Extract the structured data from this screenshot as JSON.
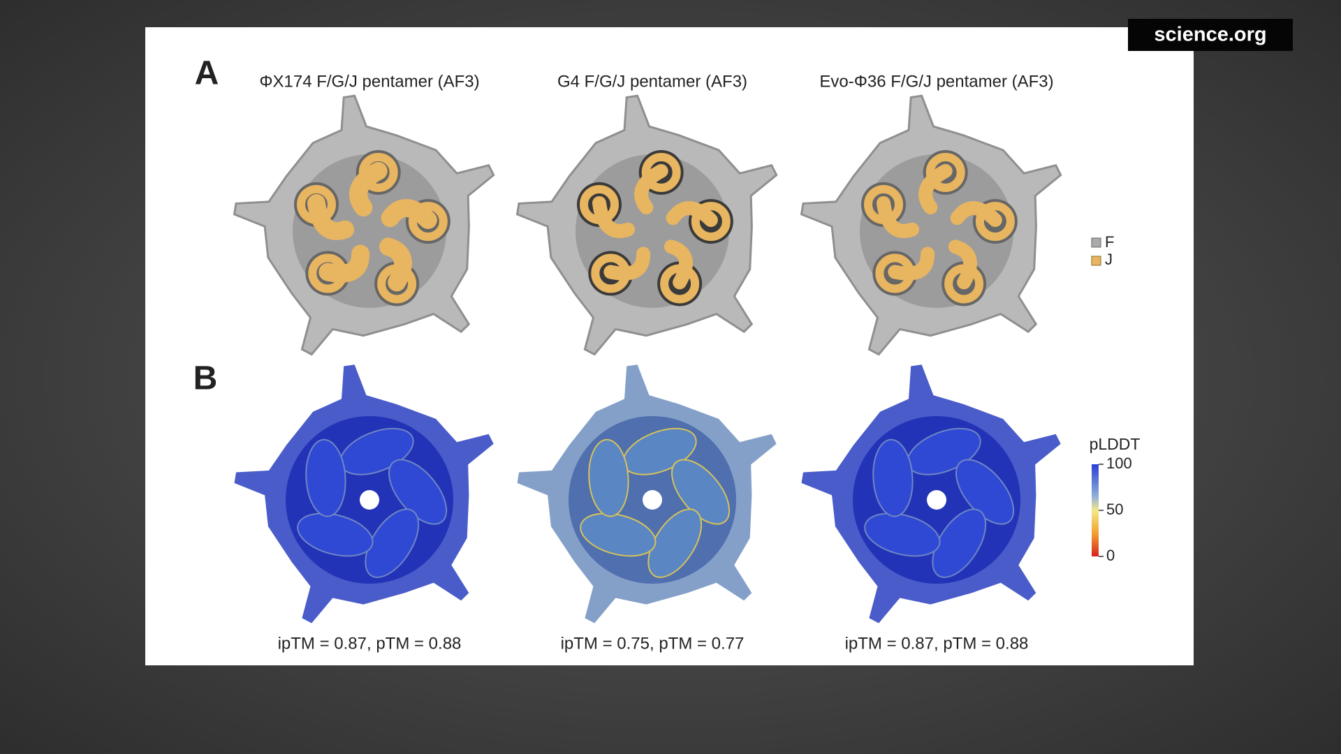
{
  "watermark": "science.org",
  "panel_a": {
    "label": "A",
    "titles": [
      "ΦX174 F/G/J pentamer (AF3)",
      "G4 F/G/J pentamer (AF3)",
      "Evo-Φ36 F/G/J pentamer (AF3)"
    ],
    "legend": [
      "F",
      "J"
    ]
  },
  "panel_b": {
    "label": "B",
    "captions": [
      "ipTM = 0.87, pTM = 0.88",
      "ipTM = 0.75, pTM = 0.77",
      "ipTM = 0.87, pTM = 0.88"
    ],
    "colorbar": {
      "title": "pLDDT",
      "ticks": [
        100,
        50,
        0
      ]
    }
  }
}
